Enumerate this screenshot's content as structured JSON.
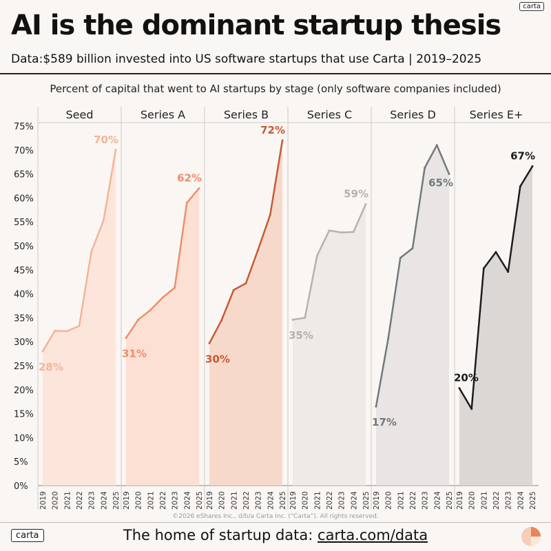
{
  "title": "AI is the dominant startup thesis",
  "subtitle": "Data:$589 billion invested into US software startups that use Carta | 2019–2025",
  "logo": "carta",
  "footer": {
    "text": "The home of startup data: ",
    "link": "carta.com/data"
  },
  "copyright": "©2026 eShares Inc., d/b/a Carta Inc. (“Carta”). All rights reserved.",
  "chart_data": {
    "type": "area",
    "title": "Percent of capital that went to AI startups by stage (only software companies included)",
    "ylim": [
      0,
      75
    ],
    "yticks": [
      "0%",
      "5%",
      "10%",
      "15%",
      "20%",
      "25%",
      "30%",
      "35%",
      "40%",
      "45%",
      "50%",
      "55%",
      "60%",
      "65%",
      "70%",
      "75%"
    ],
    "x": [
      "2019",
      "2020",
      "2021",
      "2022",
      "2023",
      "2024",
      "2025"
    ],
    "grid": false,
    "series": [
      {
        "name": "Seed",
        "values": [
          28,
          32.3,
          32.2,
          33.3,
          48.8,
          55.3,
          70
        ],
        "color": "#f3b496",
        "fill": "#fbe3d6",
        "labels": [
          {
            "i": 0,
            "text": "28%",
            "pos": "below"
          },
          {
            "i": 6,
            "text": "70%",
            "pos": "left-above"
          }
        ]
      },
      {
        "name": "Series A",
        "values": [
          30.8,
          34.6,
          36.6,
          39.2,
          41.3,
          59,
          62
        ],
        "color": "#ec8f69",
        "fill": "#fbdccd",
        "labels": [
          {
            "i": 0,
            "text": "31%",
            "pos": "below"
          },
          {
            "i": 6,
            "text": "62%",
            "pos": "left-above"
          }
        ]
      },
      {
        "name": "Series B",
        "values": [
          29.7,
          34.5,
          40.8,
          42.2,
          49.2,
          56.5,
          72
        ],
        "color": "#c65a35",
        "fill": "#f6d3c3",
        "labels": [
          {
            "i": 0,
            "text": "30%",
            "pos": "below"
          },
          {
            "i": 6,
            "text": "72%",
            "pos": "left-above"
          }
        ]
      },
      {
        "name": "Series C",
        "values": [
          34.6,
          35,
          47.9,
          53.2,
          52.8,
          52.9,
          58.7
        ],
        "color": "#b5b1ad",
        "fill": "#ebe7e3",
        "labels": [
          {
            "i": 0,
            "text": "35%",
            "pos": "below"
          },
          {
            "i": 6,
            "text": "59%",
            "pos": "left-above"
          }
        ]
      },
      {
        "name": "Series D",
        "values": [
          16.5,
          30.7,
          47.5,
          49.5,
          66.3,
          71,
          65
        ],
        "color": "#707a7a",
        "fill": "#e4e2e0",
        "labels": [
          {
            "i": 0,
            "text": "17%",
            "pos": "below"
          },
          {
            "i": 6,
            "text": "65%",
            "pos": "below-left"
          }
        ]
      },
      {
        "name": "Series E+",
        "values": [
          20.3,
          16,
          45.3,
          48.7,
          44.6,
          62.4,
          66.6
        ],
        "color": "#1c1c1c",
        "fill": "#d5d1ce",
        "labels": [
          {
            "i": 0,
            "text": "20%",
            "pos": "above"
          },
          {
            "i": 6,
            "text": "67%",
            "pos": "left-above"
          }
        ]
      }
    ]
  }
}
